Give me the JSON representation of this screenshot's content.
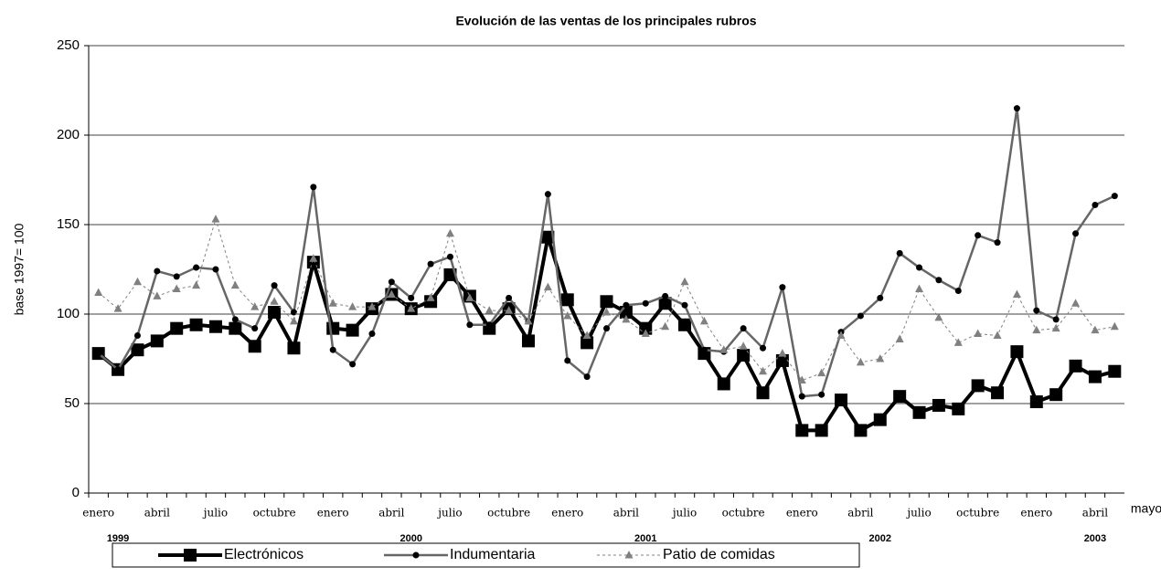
{
  "chart_data": {
    "type": "line",
    "title": "Evolución de las ventas de los principales rubros",
    "y_label": "base 1997= 100",
    "categories": [
      "enero",
      null,
      null,
      "abril",
      null,
      null,
      "julio",
      null,
      null,
      "octubre",
      null,
      null,
      "enero",
      null,
      null,
      "abril",
      null,
      null,
      "julio",
      null,
      null,
      "octubre",
      null,
      null,
      "enero",
      null,
      null,
      "abril",
      null,
      null,
      "julio",
      null,
      null,
      "octubre",
      null,
      null,
      "enero",
      null,
      null,
      "abril",
      null,
      null,
      "julio",
      null,
      null,
      "octubre",
      null,
      null,
      "enero",
      null,
      null,
      "abril",
      "mayo"
    ],
    "year_labels": [
      null,
      "1999",
      null,
      null,
      null,
      null,
      null,
      null,
      null,
      null,
      null,
      null,
      null,
      null,
      null,
      null,
      "2000",
      null,
      null,
      null,
      null,
      null,
      null,
      null,
      null,
      null,
      null,
      null,
      "2001",
      null,
      null,
      null,
      null,
      null,
      null,
      null,
      null,
      null,
      null,
      null,
      "2002",
      null,
      null,
      null,
      null,
      null,
      null,
      null,
      null,
      null,
      null,
      "2003",
      null
    ],
    "series": [
      {
        "name": "Electrónicos",
        "color": "#000000",
        "marker": "square",
        "line_style": "solid-thick",
        "values": [
          78,
          69,
          80,
          85,
          92,
          94,
          93,
          92,
          82,
          101,
          81,
          129,
          92,
          91,
          103,
          111,
          103,
          107,
          122,
          110,
          92,
          103,
          85,
          143,
          108,
          84,
          107,
          101,
          92,
          106,
          94,
          78,
          61,
          77,
          56,
          74,
          35,
          35,
          52,
          35,
          41,
          54,
          45,
          49,
          47,
          60,
          56,
          79,
          51,
          55,
          71,
          65,
          68
        ]
      },
      {
        "name": "Indumentaria",
        "color": "#666666",
        "marker": "circle",
        "line_style": "solid",
        "values": [
          78,
          69,
          88,
          124,
          121,
          126,
          125,
          97,
          92,
          116,
          101,
          171,
          80,
          72,
          89,
          118,
          109,
          128,
          132,
          94,
          94,
          109,
          96,
          167,
          74,
          65,
          92,
          105,
          106,
          110,
          105,
          80,
          79,
          92,
          81,
          115,
          54,
          55,
          90,
          99,
          109,
          134,
          126,
          119,
          113,
          144,
          140,
          215,
          102,
          97,
          145,
          161,
          166
        ]
      },
      {
        "name": "Patio de comidas",
        "color": "#808080",
        "marker": "triangle",
        "line_style": "dotted",
        "values": [
          112,
          103,
          118,
          110,
          114,
          116,
          153,
          116,
          104,
          107,
          96,
          131,
          106,
          104,
          104,
          111,
          103,
          109,
          145,
          109,
          102,
          102,
          96,
          115,
          99,
          88,
          101,
          97,
          89,
          93,
          118,
          96,
          80,
          82,
          68,
          78,
          63,
          67,
          88,
          73,
          75,
          86,
          114,
          98,
          84,
          89,
          88,
          111,
          91,
          92,
          106,
          91,
          93
        ]
      }
    ],
    "ylim": [
      0,
      250
    ],
    "yticks": [
      0,
      50,
      100,
      150,
      200,
      250
    ],
    "grid": true
  }
}
